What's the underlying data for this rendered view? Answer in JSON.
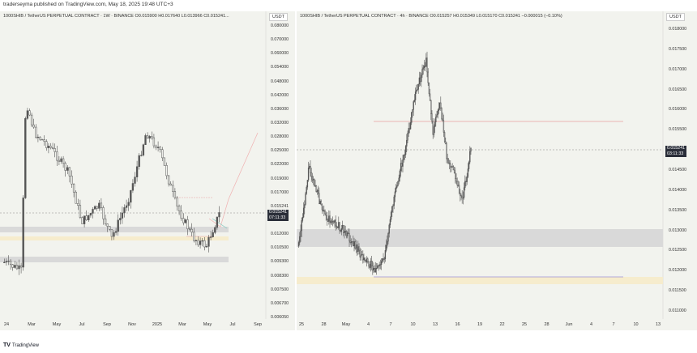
{
  "publish_info": "traderseyma published on TradingView.com, May 18, 2025 19:48 UTC+3",
  "footer": {
    "logo": "TV",
    "brand": "TradingView"
  },
  "left_chart": {
    "legend": "1000SHIB / TetherUS PERPETUAL CONTRACT · 1W · BINANCE   O0.015900  H0.017640  L0.013966  C0.015241...",
    "currency": "USDT",
    "y_ticks": [
      "0.080000",
      "0.070000",
      "0.060000",
      "0.054000",
      "0.048000",
      "0.042000",
      "0.036000",
      "0.032000",
      "0.028000",
      "0.025000",
      "0.022000",
      "0.019000",
      "0.017000",
      "0.015241",
      "0.013500",
      "0.012000",
      "0.010500",
      "0.009300",
      "0.008300",
      "0.007500",
      "0.006700",
      "0.006050"
    ],
    "last_price": "0.015241",
    "countdown": "07:11:33",
    "x_ticks": [
      "24",
      "Mar",
      "May",
      "Jul",
      "Sep",
      "Nov",
      "2025",
      "Mar",
      "May",
      "Jul",
      "Sep"
    ]
  },
  "right_chart": {
    "legend": "1000SHIB / TetherUS PERPETUAL CONTRACT · 4h · BINANCE   O0.015257  H0.015349  L0.015170  C0.015241  −0.000015 (−0.10%)",
    "currency": "USDT",
    "y_ticks": [
      "0.018000",
      "0.017500",
      "0.017000",
      "0.016500",
      "0.016000",
      "0.015500",
      "0.015000",
      "0.014500",
      "0.014000",
      "0.013500",
      "0.013000",
      "0.012500",
      "0.012000",
      "0.011500",
      "0.011000"
    ],
    "last_price": "0.015241",
    "countdown": "03:11:33",
    "x_ticks": [
      "25",
      "28",
      "May",
      "4",
      "7",
      "10",
      "13",
      "16",
      "19",
      "22",
      "25",
      "28",
      "Jun",
      "4",
      "7",
      "10",
      "13"
    ]
  },
  "colors": {
    "panel_bg": "#f2f3ee",
    "candle": "#555555",
    "zone": "#d9d9d9",
    "zone_yellow": "#f6eccd",
    "res_line": "#e6a0a0",
    "sup_line": "#9b8fd6"
  }
}
